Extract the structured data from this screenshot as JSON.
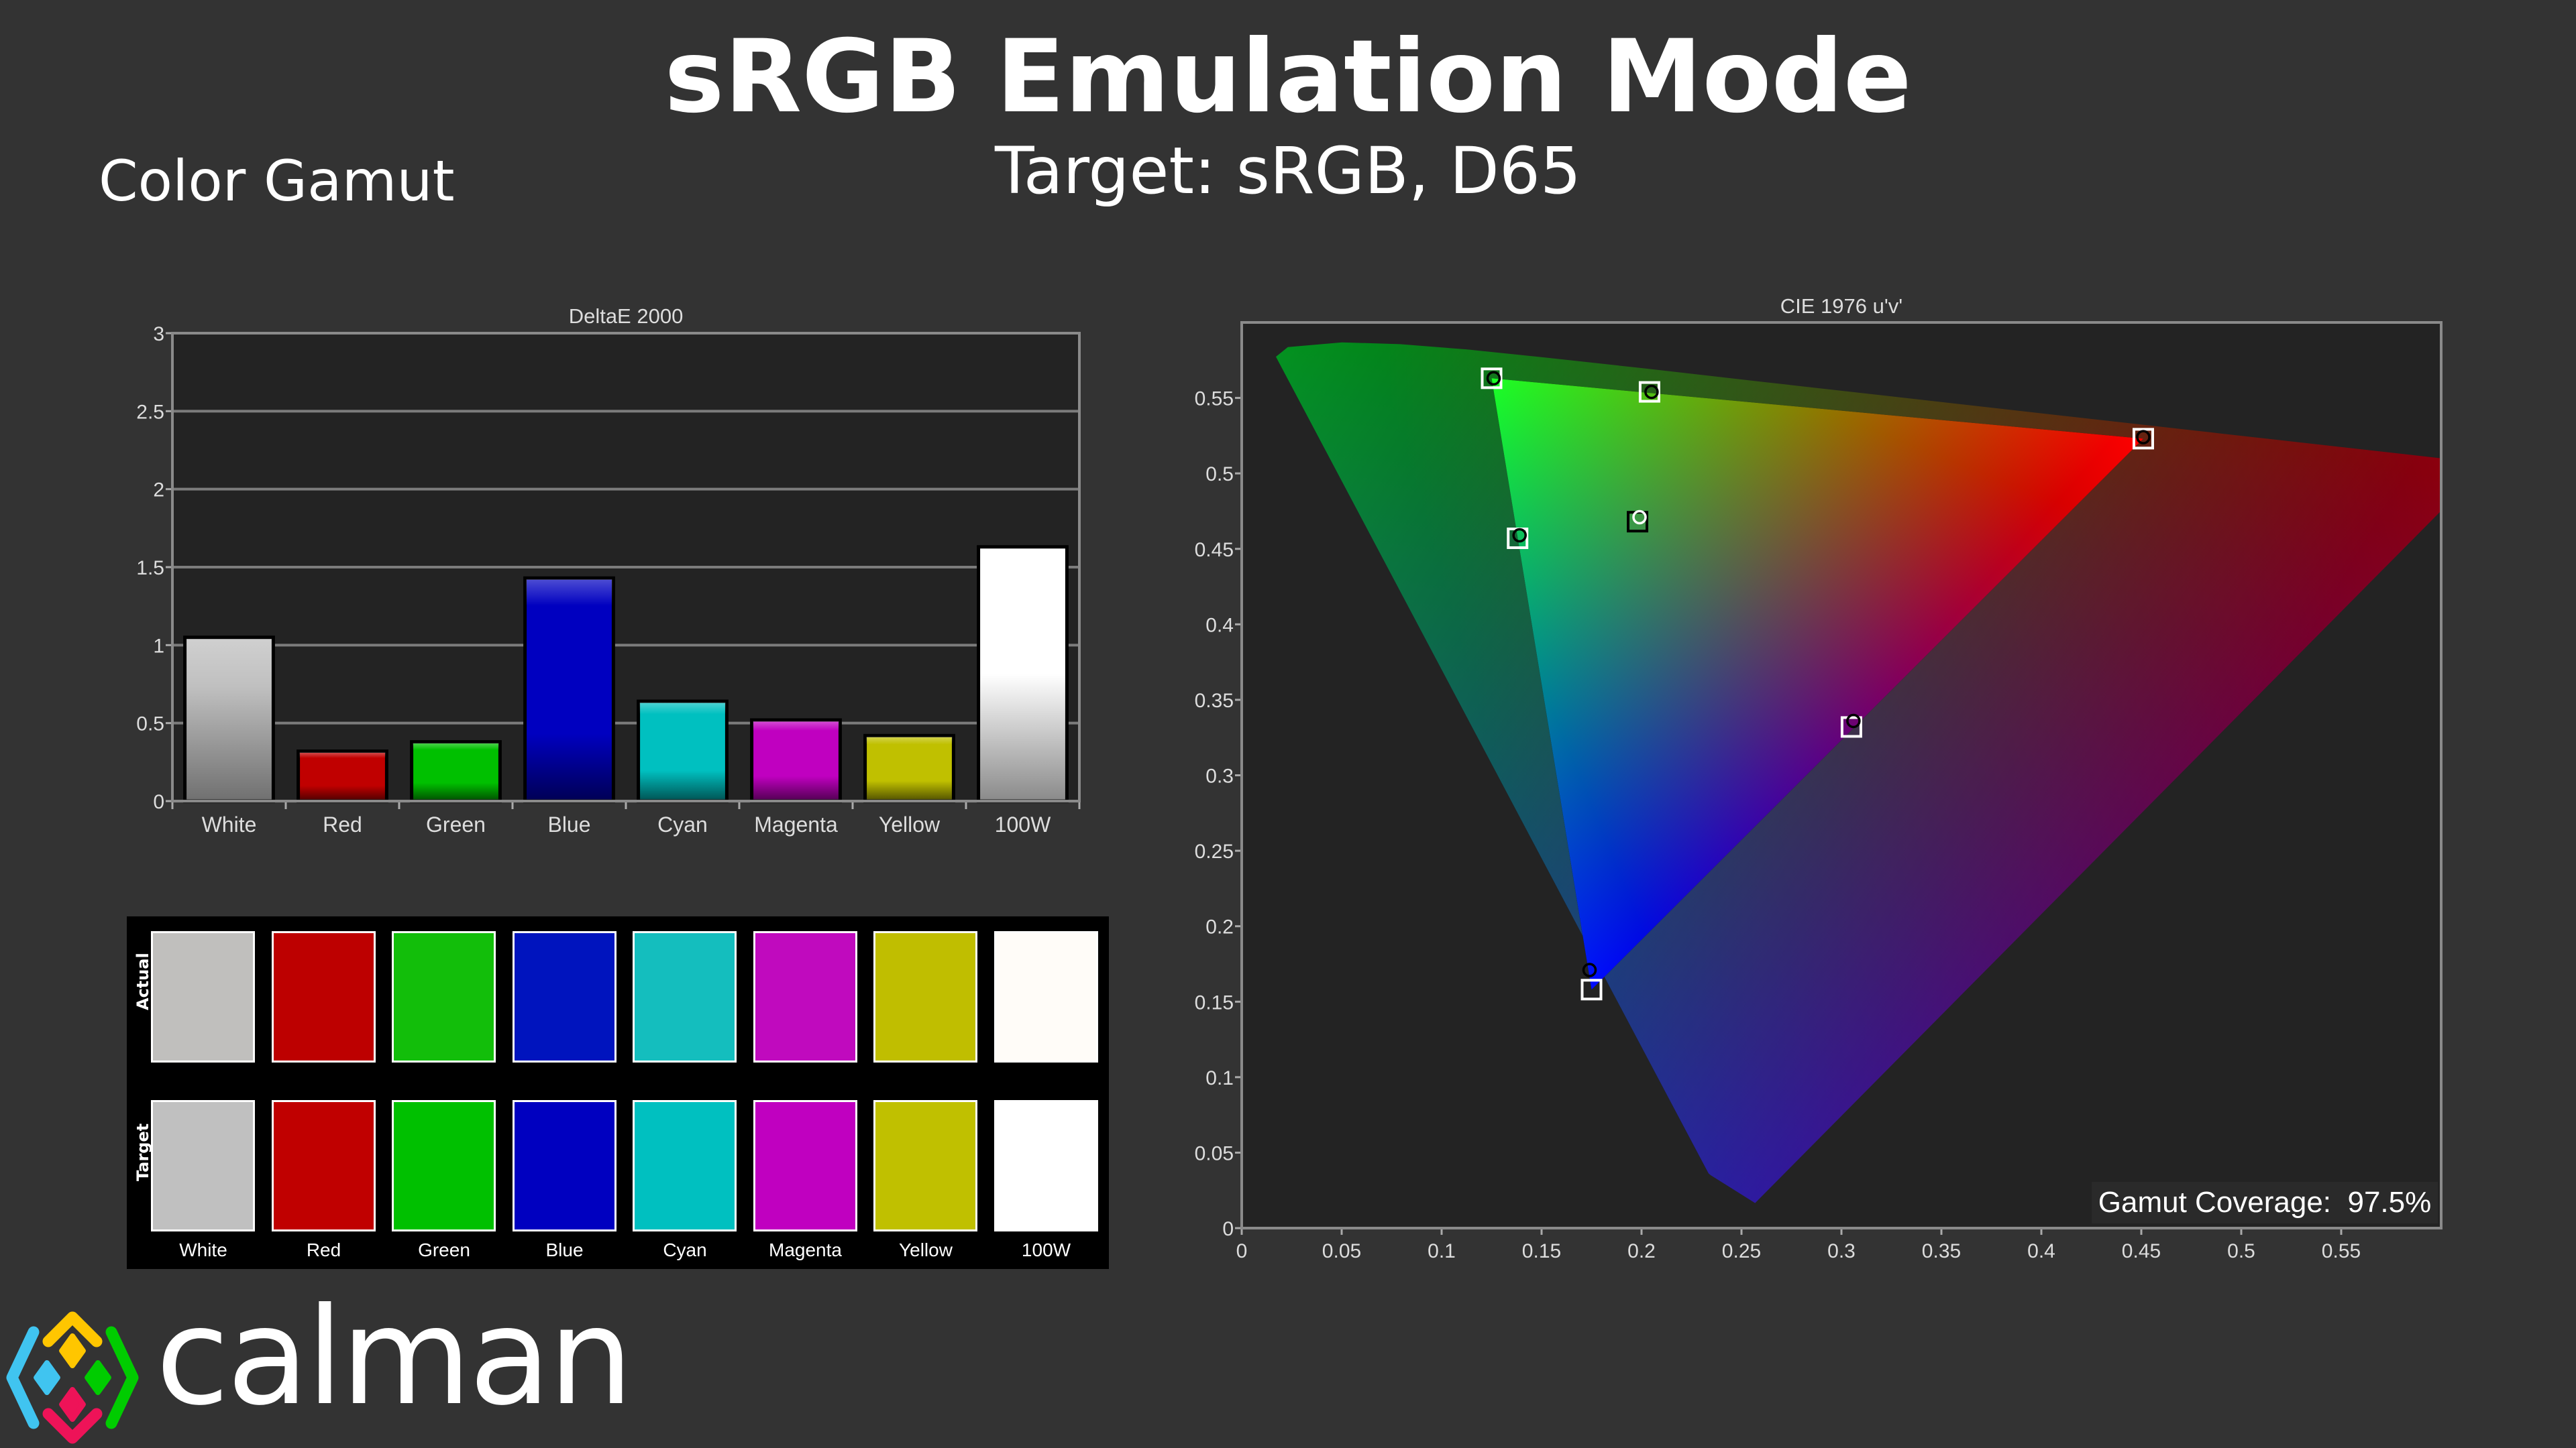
{
  "header": {
    "title": "sRGB Emulation Mode",
    "subtitle": "Target: sRGB, D65",
    "section": "Color Gamut"
  },
  "chart_data": [
    {
      "type": "bar",
      "title": "DeltaE 2000",
      "xlabel": "",
      "ylabel": "",
      "categories": [
        "White",
        "Red",
        "Green",
        "Blue",
        "Cyan",
        "Magenta",
        "Yellow",
        "100W"
      ],
      "values": [
        1.05,
        0.32,
        0.38,
        1.43,
        0.64,
        0.52,
        0.42,
        1.63
      ],
      "colors": [
        "#c0c0c0",
        "#c00000",
        "#00c000",
        "#0000c0",
        "#00c0c0",
        "#c000c0",
        "#c0c000",
        "#ffffff"
      ],
      "ylim": [
        0,
        3
      ],
      "yticks": [
        "0",
        "0.5",
        "1",
        "1.5",
        "2",
        "2.5",
        "3"
      ],
      "grid": true
    },
    {
      "type": "scatter",
      "title": "CIE 1976 u'v'",
      "xlabel": "",
      "ylabel": "",
      "xlim": [
        0,
        0.6
      ],
      "ylim": [
        0,
        0.6
      ],
      "xticks": [
        "0",
        "0.05",
        "0.1",
        "0.15",
        "0.2",
        "0.25",
        "0.3",
        "0.35",
        "0.4",
        "0.45",
        "0.5",
        "0.55"
      ],
      "yticks": [
        "0",
        "0.05",
        "0.1",
        "0.15",
        "0.2",
        "0.25",
        "0.3",
        "0.35",
        "0.4",
        "0.45",
        "0.5",
        "0.55"
      ],
      "points": [
        {
          "name": "Red",
          "target": [
            0.451,
            0.523
          ],
          "actual": [
            0.451,
            0.524
          ]
        },
        {
          "name": "Green",
          "target": [
            0.125,
            0.563
          ],
          "actual": [
            0.126,
            0.563
          ]
        },
        {
          "name": "Blue",
          "target": [
            0.175,
            0.158
          ],
          "actual": [
            0.174,
            0.171
          ]
        },
        {
          "name": "White",
          "target": [
            0.198,
            0.468
          ],
          "actual": [
            0.199,
            0.471
          ]
        },
        {
          "name": "Yellow",
          "target": [
            0.204,
            0.554
          ],
          "actual": [
            0.205,
            0.554
          ]
        },
        {
          "name": "Cyan",
          "target": [
            0.138,
            0.457
          ],
          "actual": [
            0.139,
            0.459
          ]
        },
        {
          "name": "Magenta",
          "target": [
            0.305,
            0.332
          ],
          "actual": [
            0.306,
            0.336
          ]
        }
      ],
      "annotation": {
        "label": "Gamut Coverage:",
        "value": "97.5%"
      }
    }
  ],
  "swatches": {
    "row_labels": {
      "actual": "Actual",
      "target": "Target"
    },
    "items": [
      {
        "label": "White",
        "actual": "#c0bfbd",
        "target": "#c0c0c0"
      },
      {
        "label": "Red",
        "actual": "#bd0000",
        "target": "#c00000"
      },
      {
        "label": "Green",
        "actual": "#12be0a",
        "target": "#00c000"
      },
      {
        "label": "Blue",
        "actual": "#0014be",
        "target": "#0000c0"
      },
      {
        "label": "Cyan",
        "actual": "#14bebe",
        "target": "#00c0c0"
      },
      {
        "label": "Magenta",
        "actual": "#c00abe",
        "target": "#c000c0"
      },
      {
        "label": "Yellow",
        "actual": "#c0be00",
        "target": "#c0c000"
      },
      {
        "label": "100W",
        "actual": "#fffcf8",
        "target": "#ffffff"
      }
    ]
  },
  "logo": {
    "text": "calman",
    "colors": [
      "#ffc600",
      "#40c4f0",
      "#00cc00",
      "#ee1358"
    ]
  }
}
